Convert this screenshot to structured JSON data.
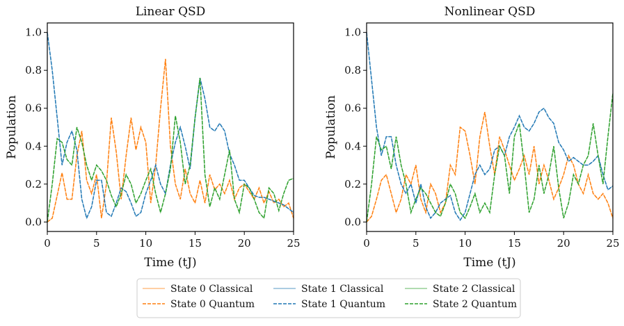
{
  "chart_data": [
    {
      "type": "line",
      "title": "Linear QSD",
      "xlabel": "Time (tJ)",
      "ylabel": "Population",
      "xlim": [
        0,
        25
      ],
      "ylim": [
        -0.05,
        1.05
      ],
      "xticks": [
        0,
        5,
        10,
        15,
        20,
        25
      ],
      "yticks": [
        0.0,
        0.2,
        0.4,
        0.6,
        0.8,
        1.0
      ],
      "xtick_labels": [
        "0",
        "5",
        "10",
        "15",
        "20",
        "25"
      ],
      "ytick_labels": [
        "0.0",
        "0.2",
        "0.4",
        "0.6",
        "0.8",
        "1.0"
      ],
      "x": [
        0,
        0.5,
        1,
        1.5,
        2,
        2.5,
        3,
        3.5,
        4,
        4.5,
        5,
        5.5,
        6,
        6.5,
        7,
        7.5,
        8,
        8.5,
        9,
        9.5,
        10,
        10.5,
        11,
        11.5,
        12,
        12.5,
        13,
        13.5,
        14,
        14.5,
        15,
        15.5,
        16,
        16.5,
        17,
        17.5,
        18,
        18.5,
        19,
        19.5,
        20,
        20.5,
        21,
        21.5,
        22,
        22.5,
        23,
        23.5,
        24,
        24.5,
        25
      ],
      "series": [
        {
          "name": "State 0 Quantum",
          "color": "#ff7f0e",
          "values": [
            0.0,
            0.02,
            0.14,
            0.26,
            0.12,
            0.12,
            0.35,
            0.48,
            0.22,
            0.15,
            0.25,
            0.02,
            0.2,
            0.55,
            0.37,
            0.12,
            0.35,
            0.55,
            0.38,
            0.5,
            0.42,
            0.1,
            0.3,
            0.6,
            0.86,
            0.4,
            0.2,
            0.12,
            0.28,
            0.15,
            0.1,
            0.22,
            0.1,
            0.25,
            0.17,
            0.2,
            0.15,
            0.22,
            0.12,
            0.18,
            0.2,
            0.16,
            0.12,
            0.18,
            0.1,
            0.16,
            0.1,
            0.12,
            0.08,
            0.1,
            0.02
          ]
        },
        {
          "name": "State 1 Quantum",
          "color": "#1f77b4",
          "values": [
            1.0,
            0.8,
            0.55,
            0.3,
            0.42,
            0.48,
            0.38,
            0.12,
            0.02,
            0.08,
            0.22,
            0.22,
            0.05,
            0.03,
            0.1,
            0.18,
            0.16,
            0.1,
            0.03,
            0.05,
            0.15,
            0.22,
            0.3,
            0.2,
            0.15,
            0.3,
            0.42,
            0.5,
            0.4,
            0.28,
            0.55,
            0.76,
            0.65,
            0.5,
            0.48,
            0.52,
            0.48,
            0.36,
            0.3,
            0.22,
            0.22,
            0.18,
            0.14,
            0.13,
            0.13,
            0.12,
            0.11,
            0.1,
            0.09,
            0.07,
            0.05
          ]
        },
        {
          "name": "State 2 Quantum",
          "color": "#2ca02c",
          "values": [
            0.0,
            0.2,
            0.44,
            0.42,
            0.33,
            0.3,
            0.5,
            0.42,
            0.3,
            0.22,
            0.3,
            0.27,
            0.22,
            0.14,
            0.08,
            0.15,
            0.25,
            0.2,
            0.1,
            0.15,
            0.22,
            0.28,
            0.15,
            0.05,
            0.15,
            0.28,
            0.56,
            0.42,
            0.2,
            0.3,
            0.55,
            0.76,
            0.25,
            0.08,
            0.18,
            0.12,
            0.25,
            0.38,
            0.12,
            0.05,
            0.2,
            0.18,
            0.12,
            0.05,
            0.02,
            0.18,
            0.15,
            0.06,
            0.15,
            0.22,
            0.23
          ]
        }
      ]
    },
    {
      "type": "line",
      "title": "Nonlinear QSD",
      "xlabel": "Time (tJ)",
      "ylabel": "Population",
      "xlim": [
        0,
        25
      ],
      "ylim": [
        -0.05,
        1.05
      ],
      "xticks": [
        0,
        5,
        10,
        15,
        20,
        25
      ],
      "yticks": [
        0.0,
        0.2,
        0.4,
        0.6,
        0.8,
        1.0
      ],
      "xtick_labels": [
        "0",
        "5",
        "10",
        "15",
        "20",
        "25"
      ],
      "ytick_labels": [
        "0.0",
        "0.2",
        "0.4",
        "0.6",
        "0.8",
        "1.0"
      ],
      "x": [
        0,
        0.5,
        1,
        1.5,
        2,
        2.5,
        3,
        3.5,
        4,
        4.5,
        5,
        5.5,
        6,
        6.5,
        7,
        7.5,
        8,
        8.5,
        9,
        9.5,
        10,
        10.5,
        11,
        11.5,
        12,
        12.5,
        13,
        13.5,
        14,
        14.5,
        15,
        15.5,
        16,
        16.5,
        17,
        17.5,
        18,
        18.5,
        19,
        19.5,
        20,
        20.5,
        21,
        21.5,
        22,
        22.5,
        23,
        23.5,
        24,
        24.5,
        25
      ],
      "series": [
        {
          "name": "State 0 Quantum",
          "color": "#ff7f0e",
          "values": [
            0.0,
            0.03,
            0.12,
            0.22,
            0.25,
            0.15,
            0.05,
            0.12,
            0.25,
            0.2,
            0.3,
            0.12,
            0.05,
            0.2,
            0.15,
            0.05,
            0.1,
            0.3,
            0.25,
            0.5,
            0.48,
            0.35,
            0.2,
            0.45,
            0.58,
            0.4,
            0.25,
            0.45,
            0.38,
            0.3,
            0.22,
            0.28,
            0.35,
            0.25,
            0.4,
            0.2,
            0.3,
            0.22,
            0.12,
            0.18,
            0.25,
            0.35,
            0.3,
            0.2,
            0.15,
            0.25,
            0.15,
            0.12,
            0.15,
            0.1,
            0.02
          ]
        },
        {
          "name": "State 1 Quantum",
          "color": "#1f77b4",
          "values": [
            1.0,
            0.75,
            0.5,
            0.35,
            0.45,
            0.45,
            0.3,
            0.2,
            0.15,
            0.2,
            0.1,
            0.2,
            0.08,
            0.02,
            0.05,
            0.1,
            0.12,
            0.14,
            0.05,
            0.01,
            0.05,
            0.15,
            0.25,
            0.3,
            0.25,
            0.28,
            0.38,
            0.4,
            0.35,
            0.45,
            0.5,
            0.56,
            0.5,
            0.48,
            0.52,
            0.58,
            0.6,
            0.55,
            0.52,
            0.42,
            0.38,
            0.32,
            0.34,
            0.32,
            0.3,
            0.3,
            0.32,
            0.35,
            0.25,
            0.17,
            0.19
          ]
        },
        {
          "name": "State 2 Quantum",
          "color": "#2ca02c",
          "values": [
            0.0,
            0.2,
            0.45,
            0.38,
            0.4,
            0.28,
            0.45,
            0.3,
            0.2,
            0.05,
            0.12,
            0.18,
            0.15,
            0.1,
            0.05,
            0.03,
            0.1,
            0.2,
            0.15,
            0.05,
            0.02,
            0.08,
            0.15,
            0.05,
            0.1,
            0.05,
            0.25,
            0.4,
            0.35,
            0.15,
            0.45,
            0.52,
            0.3,
            0.05,
            0.12,
            0.3,
            0.15,
            0.25,
            0.4,
            0.18,
            0.02,
            0.1,
            0.25,
            0.2,
            0.3,
            0.35,
            0.52,
            0.35,
            0.2,
            0.45,
            0.68
          ]
        }
      ]
    }
  ],
  "legend": {
    "position": "bottom-center",
    "entries": [
      {
        "label": "State 0 Classical",
        "color": "#ff7f0e",
        "style": "solid-light"
      },
      {
        "label": "State 0 Quantum",
        "color": "#ff7f0e",
        "style": "dashed"
      },
      {
        "label": "State 1 Classical",
        "color": "#1f77b4",
        "style": "solid-light"
      },
      {
        "label": "State 1 Quantum",
        "color": "#1f77b4",
        "style": "dashed"
      },
      {
        "label": "State 2 Classical",
        "color": "#2ca02c",
        "style": "solid-light"
      },
      {
        "label": "State 2 Quantum",
        "color": "#2ca02c",
        "style": "dashed"
      }
    ]
  }
}
